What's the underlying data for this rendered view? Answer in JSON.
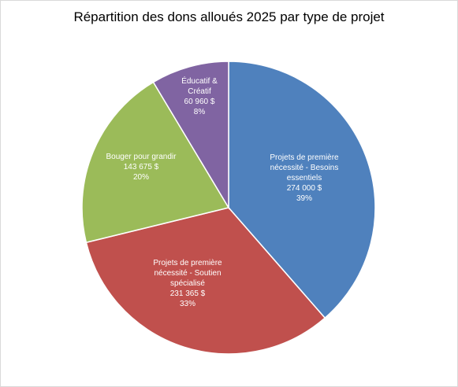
{
  "chart_data": {
    "type": "pie",
    "title": "Répartition des dons alloués 2025 par type de projet",
    "slices": [
      {
        "label_lines": [
          "Projets de première",
          "nécessité -  Besoins",
          "essentiels"
        ],
        "value": 274000,
        "value_text": "274 000  $",
        "percent_text": "39%",
        "color": "#4F81BD"
      },
      {
        "label_lines": [
          "Projets de première",
          "nécessité -  Soutien",
          "spécialisé"
        ],
        "value": 231365,
        "value_text": "231 365  $",
        "percent_text": "33%",
        "color": "#C0504D"
      },
      {
        "label_lines": [
          "Bouger pour grandir"
        ],
        "value": 143675,
        "value_text": "143 675  $",
        "percent_text": "20%",
        "color": "#9BBB59"
      },
      {
        "label_lines": [
          "Éducatif &",
          "Créatif"
        ],
        "value": 60960,
        "value_text": "60 960  $",
        "percent_text": "8%",
        "color": "#8064A2"
      }
    ]
  }
}
